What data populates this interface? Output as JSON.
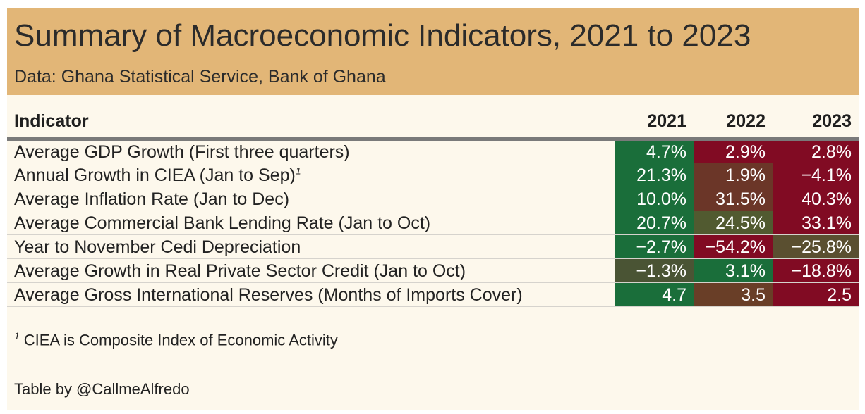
{
  "header": {
    "title": "Summary of Macroeconomic Indicators, 2021 to 2023",
    "subtitle": "Data: Ghana Statistical Service, Bank of Ghana"
  },
  "colors": {
    "header_bg": "#e2b677",
    "body_bg": "#fdf8ec",
    "dark_green": "#1a6e3a",
    "dark_red": "#810b23",
    "brown": "#693e27",
    "olive": "#5a4f30"
  },
  "table": {
    "columns": [
      "Indicator",
      "2021",
      "2022",
      "2023"
    ],
    "rows": [
      {
        "indicator": "Average GDP Growth (First three quarters)",
        "footnote": "",
        "values": [
          "4.7%",
          "2.9%",
          "2.8%"
        ],
        "colors": [
          "#1a6e3a",
          "#810b23",
          "#810b23"
        ]
      },
      {
        "indicator": "Annual Growth in CIEA (Jan to Sep)",
        "footnote": "1",
        "values": [
          "21.3%",
          "1.9%",
          "−4.1%"
        ],
        "colors": [
          "#1a6e3a",
          "#6b3628",
          "#810b23"
        ]
      },
      {
        "indicator": "Average Inflation Rate (Jan to Dec)",
        "footnote": "",
        "values": [
          "10.0%",
          "31.5%",
          "40.3%"
        ],
        "colors": [
          "#1a6e3a",
          "#6b3628",
          "#810b23"
        ]
      },
      {
        "indicator": "Average Commercial Bank Lending Rate (Jan to Oct)",
        "footnote": "",
        "values": [
          "20.7%",
          "24.5%",
          "33.1%"
        ],
        "colors": [
          "#1a6e3a",
          "#515a30",
          "#810b23"
        ]
      },
      {
        "indicator": "Year to November Cedi Depreciation",
        "footnote": "",
        "values": [
          "−2.7%",
          "−54.2%",
          "−25.8%"
        ],
        "colors": [
          "#1a6e3a",
          "#810b23",
          "#5a4f30"
        ]
      },
      {
        "indicator": "Average Growth in Real Private Sector Credit (Jan to Oct)",
        "footnote": "",
        "values": [
          "−1.3%",
          "3.1%",
          "−18.8%"
        ],
        "colors": [
          "#4a5434",
          "#1a6e3a",
          "#810b23"
        ]
      },
      {
        "indicator": "Average Gross International Reserves (Months of Imports Cover)",
        "footnote": "",
        "values": [
          "4.7",
          "3.5",
          "2.5"
        ],
        "colors": [
          "#1a6e3a",
          "#693e27",
          "#810b23"
        ]
      }
    ]
  },
  "footnote": {
    "marker": "1",
    "text": "CIEA is Composite Index of Economic Activity"
  },
  "credit": "Table by @CallmeAlfredo"
}
